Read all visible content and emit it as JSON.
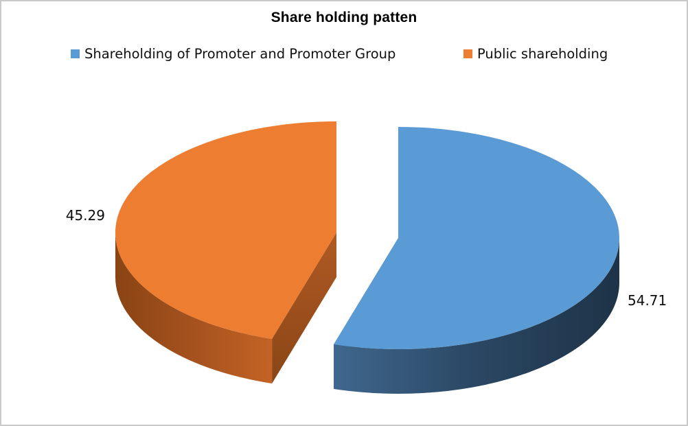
{
  "title": "Share holding patten",
  "legend": {
    "position": "top",
    "items": [
      {
        "label": "Shareholding of Promoter and Promoter Group",
        "color": "#5B9BD5"
      },
      {
        "label": "Public shareholding",
        "color": "#ED7D31"
      }
    ]
  },
  "chart_data": {
    "type": "pie",
    "style": "3d-exploded",
    "title": "Share holding patten",
    "start_angle_deg": 0,
    "direction": "clockwise",
    "legend_position": "top",
    "background": "#ffffff",
    "border_color": "#c9c9c9",
    "slices": [
      {
        "name": "Shareholding of Promoter and Promoter Group",
        "value": 54.71,
        "label": "54.71",
        "color": "#5B9BD5",
        "wall_stops": [
          "#40678E",
          "#2A4763",
          "#1E3347"
        ],
        "cut_colors": [
          "#3A5F82"
        ]
      },
      {
        "name": "Public shareholding",
        "value": 45.29,
        "label": "45.29",
        "color": "#ED7D31",
        "wall_stops": [
          "#8A4414",
          "#A5521E",
          "#C36325"
        ],
        "cut_colors": [
          "#B05A24",
          "#8A4516"
        ]
      }
    ]
  }
}
